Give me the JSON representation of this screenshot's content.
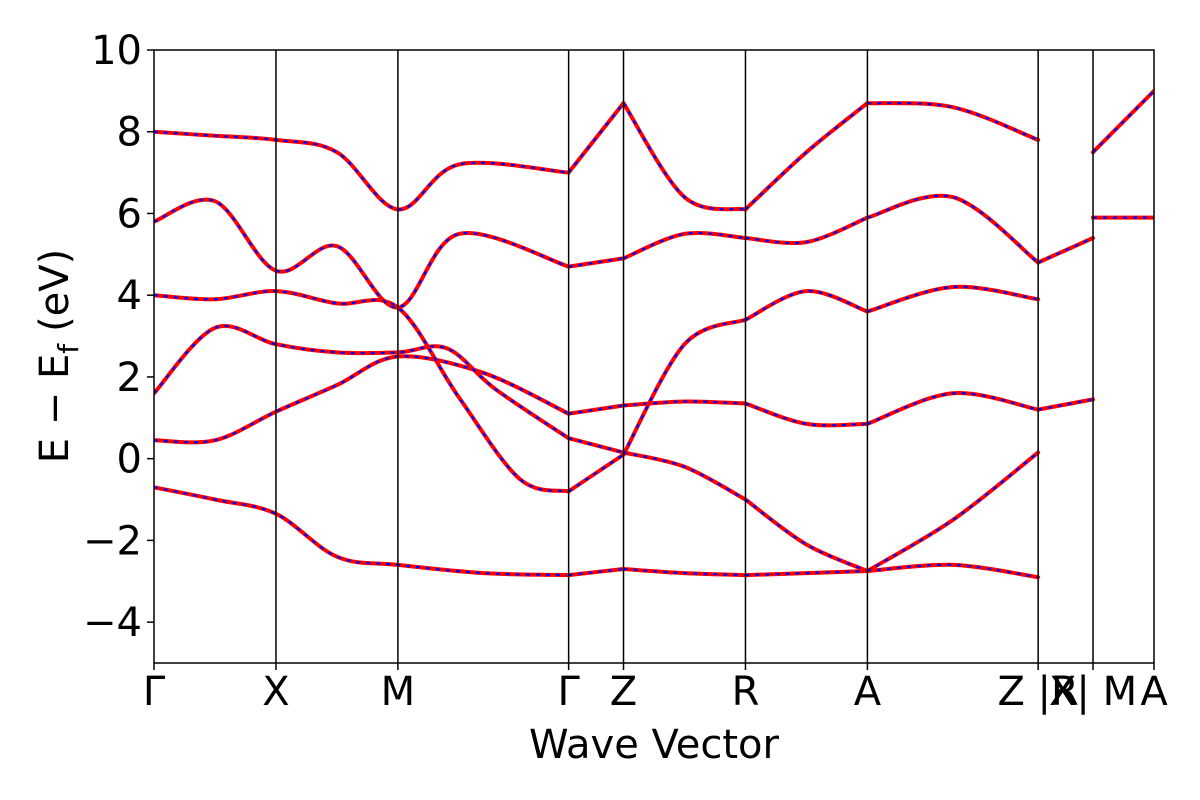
{
  "chart_data": {
    "type": "line",
    "title": "",
    "xlabel": "Wave Vector",
    "ylabel_main": "E − E",
    "ylabel_sub": "f",
    "ylabel_unit": "(eV)",
    "ylim": [
      -5,
      10
    ],
    "yticks": [
      -4,
      -2,
      0,
      2,
      4,
      6,
      8,
      10
    ],
    "ytick_labels": [
      "−4",
      "−2",
      "0",
      "2",
      "4",
      "6",
      "8",
      "10"
    ],
    "xlim": [
      0,
      8.2
    ],
    "kpoints": [
      {
        "label": "Γ",
        "x": 0
      },
      {
        "label": "X",
        "x": 1.0
      },
      {
        "label": "M",
        "x": 2.0
      },
      {
        "label": "Γ",
        "x": 3.4
      },
      {
        "label": "Z",
        "x": 3.85
      },
      {
        "label": "R",
        "x": 4.85
      },
      {
        "label": "A",
        "x": 5.85
      },
      {
        "label": "Z |R",
        "x": 7.25
      },
      {
        "label": "X| M",
        "x": 7.7
      },
      {
        "label": "A",
        "x": 8.2
      }
    ],
    "line_colors": {
      "solid": "#ff0000",
      "dashed": "#0000ff"
    },
    "series": [
      {
        "segments": [
          {
            "x": [
              0,
              0.5,
              1.0,
              1.5,
              2.0,
              2.7,
              3.4
            ],
            "y": [
              -0.7,
              -1.0,
              -1.35,
              -2.4,
              -2.6,
              -2.8,
              -2.85
            ]
          },
          {
            "x": [
              3.4,
              3.85
            ],
            "y": [
              -2.85,
              -2.7
            ]
          },
          {
            "x": [
              3.85,
              4.35,
              4.85
            ],
            "y": [
              -2.7,
              -2.8,
              -2.85
            ]
          },
          {
            "x": [
              4.85,
              5.35,
              5.85
            ],
            "y": [
              -2.85,
              -2.8,
              -2.75
            ]
          },
          {
            "x": [
              5.85,
              6.55,
              7.25
            ],
            "y": [
              -2.75,
              -2.6,
              -2.9
            ]
          }
        ]
      },
      {
        "segments": [
          {
            "x": [
              0,
              0.5,
              1.0,
              1.5,
              2.0,
              2.7,
              3.4
            ],
            "y": [
              0.45,
              0.45,
              1.15,
              1.8,
              2.5,
              2.1,
              1.1
            ]
          },
          {
            "x": [
              3.4,
              3.85
            ],
            "y": [
              1.1,
              1.3
            ]
          },
          {
            "x": [
              3.85,
              4.35,
              4.85
            ],
            "y": [
              1.3,
              1.4,
              1.35
            ]
          },
          {
            "x": [
              4.85,
              5.35,
              5.85
            ],
            "y": [
              1.35,
              0.85,
              0.85
            ]
          },
          {
            "x": [
              5.85,
              6.55,
              7.25
            ],
            "y": [
              0.85,
              1.6,
              1.2
            ]
          },
          {
            "x": [
              7.25,
              7.7
            ],
            "y": [
              1.2,
              1.45
            ]
          }
        ]
      },
      {
        "segments": [
          {
            "x": [
              0,
              0.5,
              1.0,
              1.5,
              2.0,
              2.4,
              2.8,
              3.4
            ],
            "y": [
              1.6,
              3.2,
              2.8,
              2.6,
              2.6,
              2.7,
              1.7,
              0.5
            ]
          },
          {
            "x": [
              3.4,
              3.85
            ],
            "y": [
              0.5,
              0.15
            ]
          },
          {
            "x": [
              3.85,
              4.35,
              4.85
            ],
            "y": [
              0.15,
              -0.2,
              -1.0
            ]
          },
          {
            "x": [
              4.85,
              5.35,
              5.85
            ],
            "y": [
              -1.0,
              -2.1,
              -2.75
            ]
          },
          {
            "x": [
              5.85,
              6.55,
              7.25
            ],
            "y": [
              -2.75,
              -1.5,
              0.15
            ]
          }
        ]
      },
      {
        "segments": [
          {
            "x": [
              0,
              0.5,
              1.0,
              1.5,
              2.0,
              2.5,
              3.0,
              3.4
            ],
            "y": [
              4.0,
              3.9,
              4.1,
              3.8,
              3.7,
              1.5,
              -0.5,
              -0.8
            ]
          },
          {
            "x": [
              3.4,
              3.85
            ],
            "y": [
              -0.8,
              0.1
            ]
          },
          {
            "x": [
              3.85,
              4.35,
              4.85
            ],
            "y": [
              0.1,
              2.8,
              3.4
            ]
          },
          {
            "x": [
              4.85,
              5.35,
              5.85
            ],
            "y": [
              3.4,
              4.1,
              3.6
            ]
          },
          {
            "x": [
              5.85,
              6.55,
              7.25
            ],
            "y": [
              3.6,
              4.2,
              3.9
            ]
          }
        ]
      },
      {
        "segments": [
          {
            "x": [
              0,
              0.5,
              1.0,
              1.5,
              2.0,
              2.5,
              3.4
            ],
            "y": [
              5.8,
              6.3,
              4.6,
              5.2,
              3.7,
              5.5,
              4.7
            ]
          },
          {
            "x": [
              3.4,
              3.85
            ],
            "y": [
              4.7,
              4.9
            ]
          },
          {
            "x": [
              3.85,
              4.35,
              4.85
            ],
            "y": [
              4.9,
              5.5,
              5.4
            ]
          },
          {
            "x": [
              4.85,
              5.35,
              5.85
            ],
            "y": [
              5.4,
              5.3,
              5.9
            ]
          },
          {
            "x": [
              5.85,
              6.55,
              7.25
            ],
            "y": [
              5.9,
              6.4,
              4.8
            ]
          },
          {
            "x": [
              7.25,
              7.7
            ],
            "y": [
              4.8,
              5.4
            ]
          },
          {
            "x": [
              7.7,
              8.2
            ],
            "y": [
              5.9,
              5.9
            ]
          }
        ]
      },
      {
        "segments": [
          {
            "x": [
              0,
              0.5,
              1.0,
              1.5,
              2.0,
              2.5,
              3.4
            ],
            "y": [
              8.0,
              7.9,
              7.8,
              7.5,
              6.1,
              7.2,
              7.0
            ]
          },
          {
            "x": [
              3.4,
              3.85
            ],
            "y": [
              7.0,
              8.7
            ]
          },
          {
            "x": [
              3.85,
              4.35,
              4.85
            ],
            "y": [
              8.7,
              6.4,
              6.1
            ]
          },
          {
            "x": [
              4.85,
              5.35,
              5.85
            ],
            "y": [
              6.1,
              7.5,
              8.7
            ]
          },
          {
            "x": [
              5.85,
              6.55,
              7.25
            ],
            "y": [
              8.7,
              8.6,
              7.8
            ]
          },
          {
            "x": [
              7.7,
              8.2
            ],
            "y": [
              7.5,
              9.0
            ]
          }
        ]
      }
    ]
  }
}
